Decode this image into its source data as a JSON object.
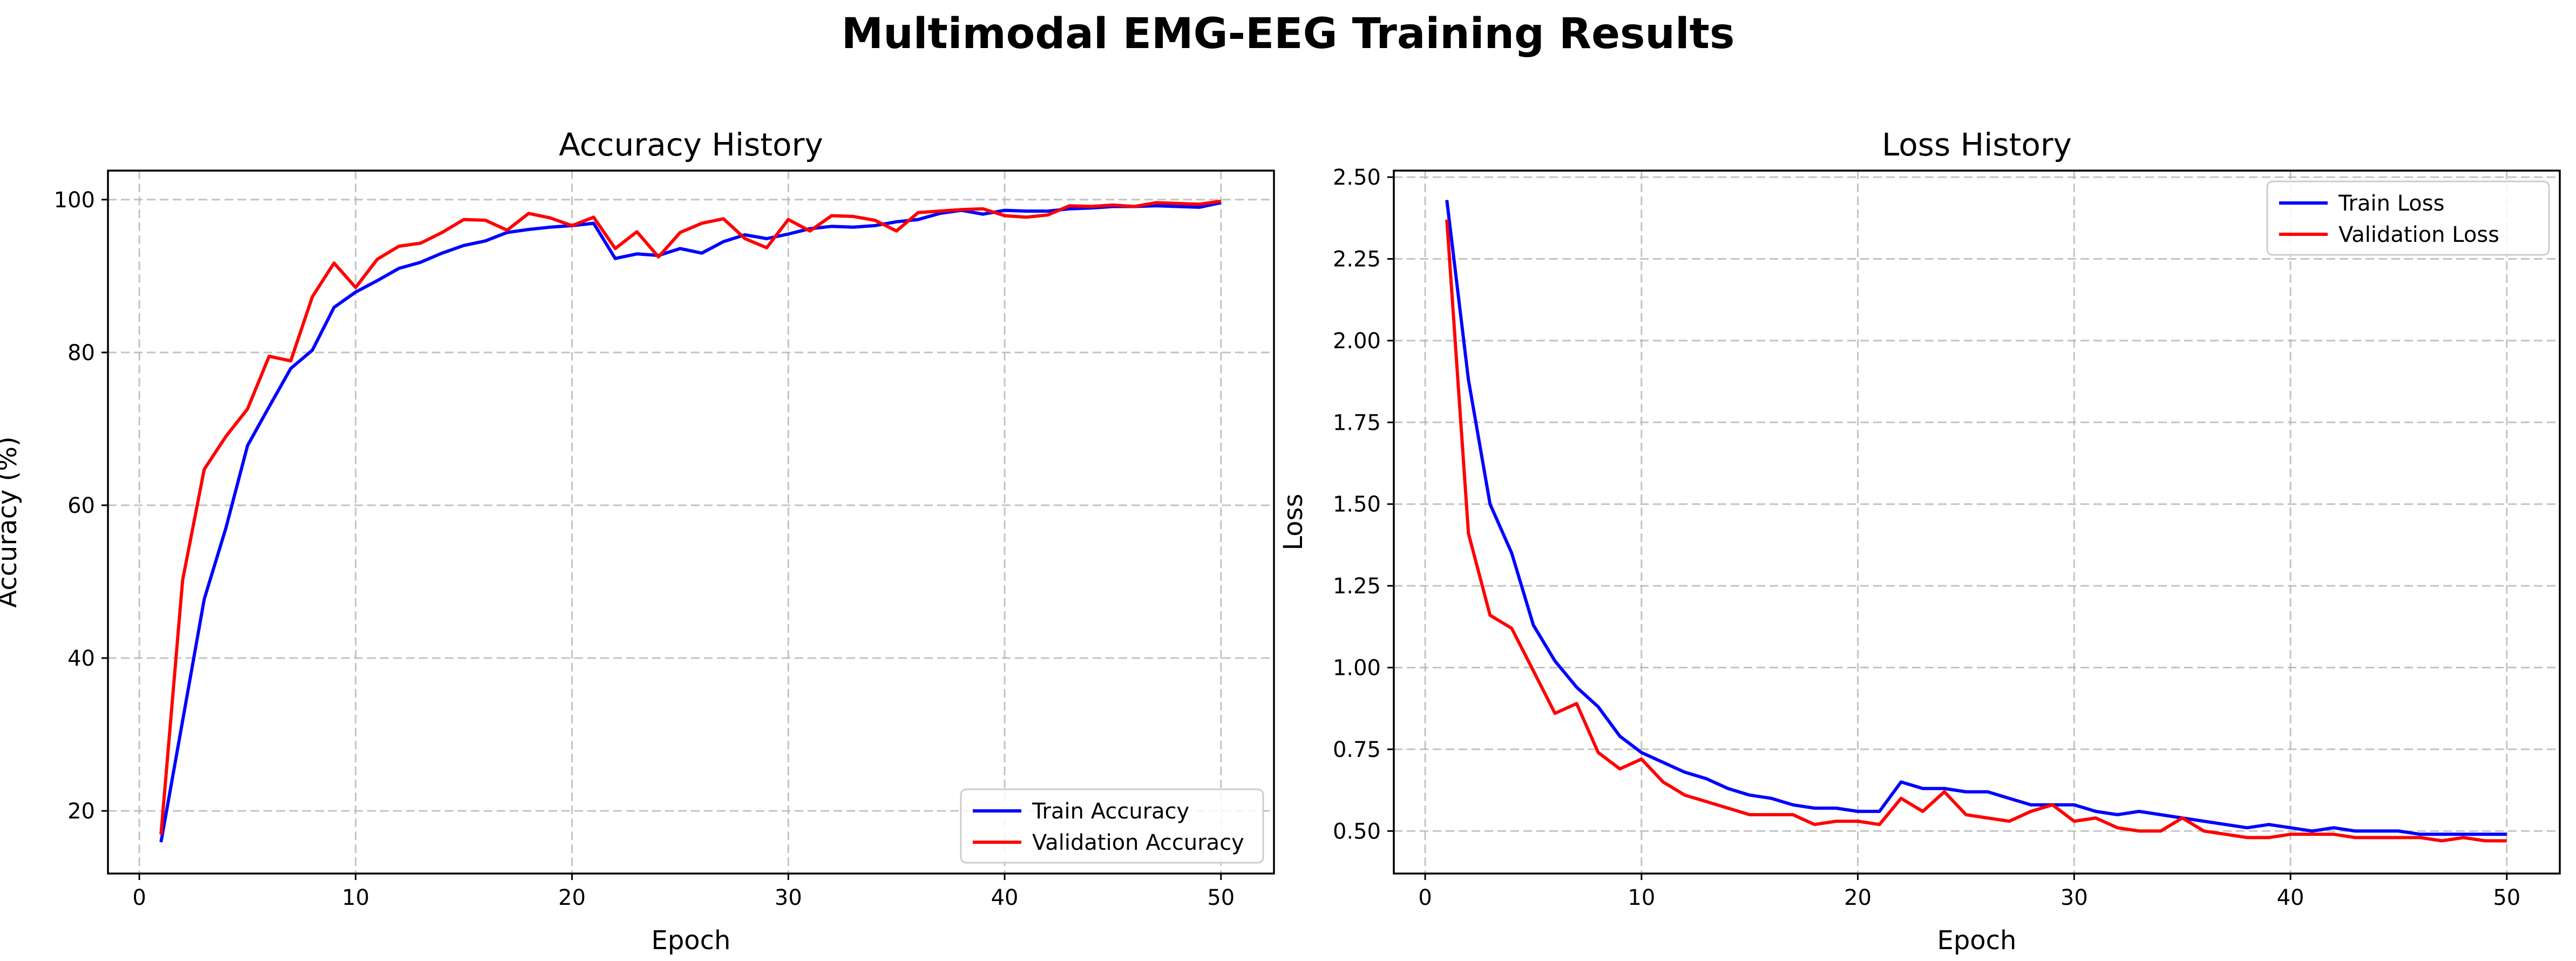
{
  "figure": {
    "suptitle": "Multimodal EMG-EEG Training Results"
  },
  "colors": {
    "train": "#0000ff",
    "validation": "#ff0000"
  },
  "chart_data": [
    {
      "type": "line",
      "title": "Accuracy History",
      "xlabel": "Epoch",
      "ylabel": "Accuracy (%)",
      "xlim": [
        -1.45,
        52.45
      ],
      "ylim": [
        11.8,
        103.8
      ],
      "xticks": [
        0,
        10,
        20,
        30,
        40,
        50
      ],
      "yticks": [
        20,
        40,
        60,
        80,
        100
      ],
      "ytick_labels": [
        "20",
        "40",
        "60",
        "80",
        "100"
      ],
      "grid": true,
      "legend_position": "lower right",
      "x": [
        1,
        2,
        3,
        4,
        5,
        6,
        7,
        8,
        9,
        10,
        11,
        12,
        13,
        14,
        15,
        16,
        17,
        18,
        19,
        20,
        21,
        22,
        23,
        24,
        25,
        26,
        27,
        28,
        29,
        30,
        31,
        32,
        33,
        34,
        35,
        36,
        37,
        38,
        39,
        40,
        41,
        42,
        43,
        44,
        45,
        46,
        47,
        48,
        49,
        50
      ],
      "series": [
        {
          "name": "Train Accuracy",
          "color": "#0000ff",
          "values": [
            15.9,
            31.8,
            47.7,
            57.0,
            67.8,
            72.9,
            77.9,
            80.3,
            85.9,
            87.9,
            89.4,
            91.0,
            91.8,
            93.0,
            94.0,
            94.6,
            95.7,
            96.1,
            96.4,
            96.6,
            96.9,
            92.3,
            92.9,
            92.7,
            93.6,
            93.0,
            94.5,
            95.4,
            94.9,
            95.5,
            96.2,
            96.5,
            96.4,
            96.6,
            97.1,
            97.4,
            98.2,
            98.6,
            98.1,
            98.6,
            98.5,
            98.5,
            98.8,
            98.9,
            99.1,
            99.1,
            99.2,
            99.1,
            99.0,
            99.6
          ]
        },
        {
          "name": "Validation Accuracy",
          "color": "#ff0000",
          "values": [
            16.9,
            50.2,
            64.7,
            69.0,
            72.6,
            79.5,
            78.9,
            87.3,
            91.7,
            88.5,
            92.2,
            93.9,
            94.3,
            95.7,
            97.4,
            97.3,
            96.0,
            98.2,
            97.6,
            96.6,
            97.7,
            93.6,
            95.8,
            92.5,
            95.7,
            96.9,
            97.5,
            94.9,
            93.7,
            97.4,
            95.9,
            97.9,
            97.8,
            97.3,
            95.9,
            98.3,
            98.5,
            98.7,
            98.8,
            97.9,
            97.7,
            98.0,
            99.2,
            99.1,
            99.3,
            99.1,
            99.6,
            99.5,
            99.4,
            99.8
          ]
        }
      ]
    },
    {
      "type": "line",
      "title": "Loss History",
      "xlabel": "Epoch",
      "ylabel": "Loss",
      "xlim": [
        -1.45,
        52.45
      ],
      "ylim": [
        0.37,
        2.52
      ],
      "xticks": [
        0,
        10,
        20,
        30,
        40,
        50
      ],
      "yticks": [
        0.5,
        0.75,
        1.0,
        1.25,
        1.5,
        1.75,
        2.0,
        2.25,
        2.5
      ],
      "ytick_labels": [
        "0.50",
        "0.75",
        "1.00",
        "1.25",
        "1.50",
        "1.75",
        "2.00",
        "2.25",
        "2.50"
      ],
      "grid": true,
      "legend_position": "upper right",
      "x": [
        1,
        2,
        3,
        4,
        5,
        6,
        7,
        8,
        9,
        10,
        11,
        12,
        13,
        14,
        15,
        16,
        17,
        18,
        19,
        20,
        21,
        22,
        23,
        24,
        25,
        26,
        27,
        28,
        29,
        30,
        31,
        32,
        33,
        34,
        35,
        36,
        37,
        38,
        39,
        40,
        41,
        42,
        43,
        44,
        45,
        46,
        47,
        48,
        49,
        50
      ],
      "series": [
        {
          "name": "Train Loss",
          "color": "#0000ff",
          "values": [
            2.43,
            1.88,
            1.5,
            1.35,
            1.13,
            1.02,
            0.94,
            0.88,
            0.79,
            0.74,
            0.71,
            0.68,
            0.66,
            0.63,
            0.61,
            0.6,
            0.58,
            0.57,
            0.57,
            0.56,
            0.56,
            0.65,
            0.63,
            0.63,
            0.62,
            0.62,
            0.6,
            0.58,
            0.58,
            0.58,
            0.56,
            0.55,
            0.56,
            0.55,
            0.54,
            0.53,
            0.52,
            0.51,
            0.52,
            0.51,
            0.5,
            0.51,
            0.5,
            0.5,
            0.5,
            0.49,
            0.49,
            0.49,
            0.49,
            0.49
          ]
        },
        {
          "name": "Validation Loss",
          "color": "#ff0000",
          "values": [
            2.37,
            1.41,
            1.16,
            1.12,
            0.99,
            0.86,
            0.89,
            0.74,
            0.69,
            0.72,
            0.65,
            0.61,
            0.59,
            0.57,
            0.55,
            0.55,
            0.55,
            0.52,
            0.53,
            0.53,
            0.52,
            0.6,
            0.56,
            0.62,
            0.55,
            0.54,
            0.53,
            0.56,
            0.58,
            0.53,
            0.54,
            0.51,
            0.5,
            0.5,
            0.54,
            0.5,
            0.49,
            0.48,
            0.48,
            0.49,
            0.49,
            0.49,
            0.48,
            0.48,
            0.48,
            0.48,
            0.47,
            0.48,
            0.47,
            0.47
          ]
        }
      ]
    }
  ]
}
